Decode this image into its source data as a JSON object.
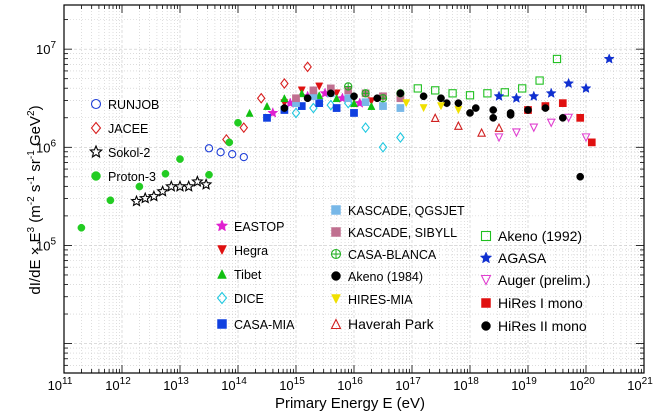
{
  "chart_data": {
    "type": "scatter",
    "title": "",
    "xlabel": "Primary Energy E (eV)",
    "ylabel_prefix": "dI/dE × E",
    "ylabel_exp": "3",
    "ylabel_units_left": "(m",
    "ylabel_units_parts": [
      "-2",
      " s",
      "-1",
      " sr",
      "-1",
      " GeV",
      "2",
      ")"
    ],
    "xscale": "log",
    "yscale": "log",
    "xlim_exp": [
      11,
      21
    ],
    "ylim_exp": [
      3.7,
      7.45
    ],
    "grid": true,
    "x_ticks": [
      {
        "base": "10",
        "exp": "11",
        "v": 11
      },
      {
        "base": "10",
        "exp": "12",
        "v": 12
      },
      {
        "base": "10",
        "exp": "13",
        "v": 13
      },
      {
        "base": "10",
        "exp": "14",
        "v": 14
      },
      {
        "base": "10",
        "exp": "15",
        "v": 15
      },
      {
        "base": "10",
        "exp": "16",
        "v": 16
      },
      {
        "base": "10",
        "exp": "17",
        "v": 17
      },
      {
        "base": "10",
        "exp": "18",
        "v": 18
      },
      {
        "base": "10",
        "exp": "19",
        "v": 19
      },
      {
        "base": "10",
        "exp": "20",
        "v": 20
      },
      {
        "base": "10",
        "exp": "21",
        "v": 21
      }
    ],
    "y_ticks": [
      {
        "base": "10",
        "exp": "5",
        "v": 5
      },
      {
        "base": "10",
        "exp": "6",
        "v": 6
      },
      {
        "base": "10",
        "exp": "7",
        "v": 7
      }
    ],
    "series": [
      {
        "name": "RUNJOB",
        "marker": "circle-open",
        "color": "#1f3fd8",
        "points": [
          [
            13.5,
            5.99
          ],
          [
            13.7,
            5.95
          ],
          [
            13.9,
            5.93
          ],
          [
            14.1,
            5.9
          ]
        ]
      },
      {
        "name": "JACEE",
        "marker": "diamond-open",
        "color": "#d81f1f",
        "points": [
          [
            13.8,
            6.08
          ],
          [
            14.1,
            6.2
          ],
          [
            14.4,
            6.5
          ],
          [
            14.8,
            6.65
          ],
          [
            15.2,
            6.82
          ]
        ]
      },
      {
        "name": "Sokol-2",
        "marker": "star-open",
        "color": "#000000",
        "points": [
          [
            12.25,
            5.45
          ],
          [
            12.4,
            5.48
          ],
          [
            12.55,
            5.5
          ],
          [
            12.7,
            5.55
          ],
          [
            12.85,
            5.6
          ],
          [
            13.0,
            5.6
          ],
          [
            13.15,
            5.6
          ],
          [
            13.3,
            5.65
          ],
          [
            13.45,
            5.62
          ]
        ]
      },
      {
        "name": "Proton-3",
        "marker": "circle",
        "color": "#22cc22",
        "points": [
          [
            11.3,
            5.18
          ],
          [
            11.8,
            5.46
          ],
          [
            12.3,
            5.6
          ],
          [
            12.75,
            5.73
          ],
          [
            13.0,
            5.88
          ],
          [
            13.5,
            5.72
          ],
          [
            13.85,
            6.05
          ],
          [
            14.0,
            6.25
          ]
        ]
      },
      {
        "name": "EASTOP",
        "marker": "star",
        "color": "#e020d0",
        "points": [
          [
            14.6,
            6.35
          ],
          [
            14.9,
            6.45
          ],
          [
            15.2,
            6.52
          ],
          [
            15.5,
            6.55
          ],
          [
            15.8,
            6.5
          ],
          [
            16.1,
            6.45
          ]
        ]
      },
      {
        "name": "Hegra",
        "marker": "triangle-down",
        "color": "#e01010",
        "points": [
          [
            14.8,
            6.45
          ],
          [
            15.1,
            6.58
          ],
          [
            15.4,
            6.62
          ],
          [
            15.7,
            6.55
          ],
          [
            16.0,
            6.5
          ],
          [
            16.3,
            6.47
          ]
        ]
      },
      {
        "name": "Tibet",
        "marker": "triangle",
        "color": "#10c010",
        "points": [
          [
            14.2,
            6.35
          ],
          [
            14.5,
            6.42
          ],
          [
            14.8,
            6.5
          ],
          [
            15.1,
            6.55
          ],
          [
            15.4,
            6.53
          ],
          [
            15.7,
            6.5
          ],
          [
            16.0,
            6.45
          ],
          [
            16.3,
            6.42
          ]
        ]
      },
      {
        "name": "DICE",
        "marker": "diamond-open",
        "color": "#20c8e0",
        "points": [
          [
            15.0,
            6.35
          ],
          [
            15.3,
            6.4
          ],
          [
            15.6,
            6.43
          ],
          [
            15.9,
            6.45
          ],
          [
            16.2,
            6.2
          ],
          [
            16.5,
            6.0
          ],
          [
            16.8,
            6.1
          ]
        ]
      },
      {
        "name": "CASA-MIA",
        "marker": "square",
        "color": "#1040e0",
        "points": [
          [
            14.5,
            6.3
          ],
          [
            14.8,
            6.38
          ],
          [
            15.1,
            6.42
          ],
          [
            15.4,
            6.45
          ],
          [
            15.7,
            6.4
          ],
          [
            16.0,
            6.35
          ]
        ]
      },
      {
        "name": "KASCADE, QGSJET",
        "marker": "square",
        "color": "#78b8e8",
        "points": [
          [
            15.0,
            6.45
          ],
          [
            15.3,
            6.52
          ],
          [
            15.6,
            6.55
          ],
          [
            15.9,
            6.5
          ],
          [
            16.2,
            6.46
          ],
          [
            16.5,
            6.42
          ],
          [
            16.8,
            6.4
          ]
        ]
      },
      {
        "name": "KASCADE, SIBYLL",
        "marker": "square",
        "color": "#c07090",
        "points": [
          [
            15.0,
            6.5
          ],
          [
            15.3,
            6.58
          ],
          [
            15.6,
            6.6
          ],
          [
            15.9,
            6.58
          ],
          [
            16.2,
            6.55
          ],
          [
            16.5,
            6.52
          ],
          [
            16.8,
            6.5
          ]
        ]
      },
      {
        "name": "CASA-BLANCA",
        "marker": "circle-cross",
        "color": "#20b020",
        "points": [
          [
            15.9,
            6.62
          ],
          [
            16.2,
            6.55
          ],
          [
            16.5,
            6.5
          ],
          [
            16.8,
            6.55
          ]
        ]
      },
      {
        "name": "Akeno (1984)",
        "marker": "circle",
        "color": "#000000",
        "points": [
          [
            14.8,
            6.4
          ],
          [
            15.2,
            6.5
          ],
          [
            15.6,
            6.55
          ],
          [
            16.0,
            6.52
          ],
          [
            16.4,
            6.5
          ],
          [
            16.8,
            6.55
          ],
          [
            17.2,
            6.52
          ],
          [
            17.6,
            6.45
          ],
          [
            18.0,
            6.35
          ],
          [
            18.4,
            6.3
          ],
          [
            18.7,
            6.33
          ]
        ]
      },
      {
        "name": "HIRES-MIA",
        "marker": "triangle-down",
        "color": "#f0e000",
        "points": [
          [
            16.9,
            6.45
          ],
          [
            17.2,
            6.4
          ],
          [
            17.5,
            6.42
          ],
          [
            17.8,
            6.38
          ]
        ]
      },
      {
        "name": "Haverah Park",
        "marker": "triangle-open",
        "color": "#d02020",
        "points": [
          [
            17.4,
            6.3
          ],
          [
            17.8,
            6.22
          ],
          [
            18.2,
            6.15
          ],
          [
            18.5,
            6.2
          ]
        ]
      },
      {
        "name": "Akeno (1992)",
        "marker": "square-open",
        "color": "#20c020",
        "points": [
          [
            17.1,
            6.6
          ],
          [
            17.4,
            6.58
          ],
          [
            17.7,
            6.55
          ],
          [
            18.0,
            6.53
          ],
          [
            18.3,
            6.55
          ],
          [
            18.6,
            6.56
          ],
          [
            18.9,
            6.6
          ],
          [
            19.2,
            6.68
          ],
          [
            19.5,
            6.9
          ]
        ]
      },
      {
        "name": "AGASA",
        "marker": "star",
        "color": "#1030d0",
        "points": [
          [
            18.5,
            6.52
          ],
          [
            18.8,
            6.5
          ],
          [
            19.1,
            6.52
          ],
          [
            19.4,
            6.55
          ],
          [
            19.7,
            6.65
          ],
          [
            20.0,
            6.6
          ],
          [
            20.4,
            6.9
          ]
        ]
      },
      {
        "name": "Auger (prelim.)",
        "marker": "triangle-down-open",
        "color": "#e040d0",
        "points": [
          [
            18.5,
            6.1
          ],
          [
            18.8,
            6.15
          ],
          [
            19.1,
            6.2
          ],
          [
            19.4,
            6.25
          ],
          [
            19.7,
            6.3
          ],
          [
            20.0,
            6.1
          ]
        ]
      },
      {
        "name": "HiRes I mono",
        "marker": "square",
        "color": "#e01010",
        "points": [
          [
            19.0,
            6.38
          ],
          [
            19.3,
            6.42
          ],
          [
            19.6,
            6.45
          ],
          [
            19.9,
            6.3
          ],
          [
            20.1,
            6.05
          ]
        ]
      },
      {
        "name": "HiRes II mono",
        "marker": "circle",
        "color": "#000000",
        "points": [
          [
            17.5,
            6.5
          ],
          [
            17.8,
            6.45
          ],
          [
            18.1,
            6.4
          ],
          [
            18.4,
            6.38
          ],
          [
            18.7,
            6.35
          ],
          [
            19.0,
            6.38
          ],
          [
            19.3,
            6.4
          ],
          [
            19.6,
            6.3
          ],
          [
            19.9,
            5.7
          ]
        ]
      }
    ]
  }
}
